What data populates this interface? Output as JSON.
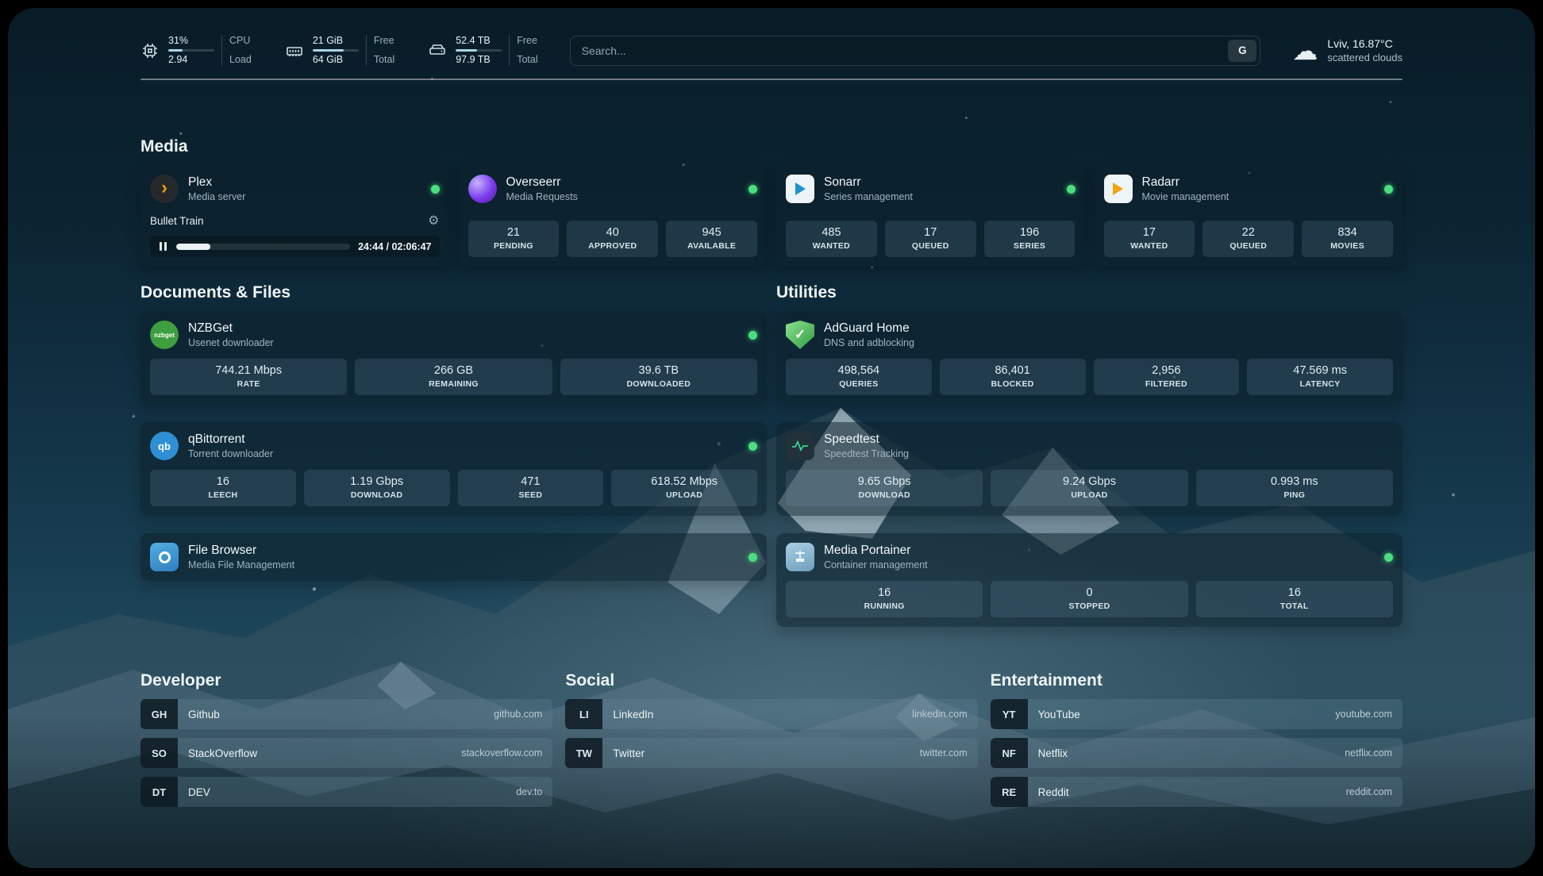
{
  "theme": {
    "status_online": "#4ade80",
    "progress_fill": "#a9d6e8",
    "plex_accent": "#e5a00d"
  },
  "topbar": {
    "cpu": {
      "value_top": "31%",
      "value_bottom": "2.94",
      "label_top": "CPU",
      "label_bottom": "Load",
      "percent": 31
    },
    "memory": {
      "value_top": "21 GiB",
      "value_bottom": "64 GiB",
      "label_top": "Free",
      "label_bottom": "Total",
      "percent": 67
    },
    "disk": {
      "value_top": "52.4 TB",
      "value_bottom": "97.9 TB",
      "label_top": "Free",
      "label_bottom": "Total",
      "percent": 46
    },
    "search": {
      "placeholder": "Search...",
      "provider": "G"
    },
    "weather": {
      "location": "Lviv, 16.87°C",
      "condition": "scattered clouds"
    }
  },
  "media": {
    "title": "Media",
    "plex": {
      "name": "Plex",
      "subtitle": "Media server",
      "now_playing": "Bullet Train",
      "time": "24:44 / 02:06:47",
      "progress": 19.5
    },
    "overseerr": {
      "name": "Overseerr",
      "subtitle": "Media Requests",
      "stats": [
        {
          "value": "21",
          "label": "PENDING"
        },
        {
          "value": "40",
          "label": "APPROVED"
        },
        {
          "value": "945",
          "label": "AVAILABLE"
        }
      ]
    },
    "sonarr": {
      "name": "Sonarr",
      "subtitle": "Series management",
      "stats": [
        {
          "value": "485",
          "label": "WANTED"
        },
        {
          "value": "17",
          "label": "QUEUED"
        },
        {
          "value": "196",
          "label": "SERIES"
        }
      ]
    },
    "radarr": {
      "name": "Radarr",
      "subtitle": "Movie management",
      "stats": [
        {
          "value": "17",
          "label": "WANTED"
        },
        {
          "value": "22",
          "label": "QUEUED"
        },
        {
          "value": "834",
          "label": "MOVIES"
        }
      ]
    }
  },
  "documents": {
    "title": "Documents & Files",
    "nzbget": {
      "name": "NZBGet",
      "subtitle": "Usenet downloader",
      "icon_text": "nzbget",
      "stats": [
        {
          "value": "744.21 Mbps",
          "label": "RATE"
        },
        {
          "value": "266 GB",
          "label": "REMAINING"
        },
        {
          "value": "39.6 TB",
          "label": "DOWNLOADED"
        }
      ]
    },
    "qbittorrent": {
      "name": "qBittorrent",
      "subtitle": "Torrent downloader",
      "icon_text": "qb",
      "stats": [
        {
          "value": "16",
          "label": "LEECH"
        },
        {
          "value": "1.19 Gbps",
          "label": "DOWNLOAD"
        },
        {
          "value": "471",
          "label": "SEED"
        },
        {
          "value": "618.52 Mbps",
          "label": "UPLOAD"
        }
      ]
    },
    "filebrowser": {
      "name": "File Browser",
      "subtitle": "Media File Management"
    }
  },
  "utilities": {
    "title": "Utilities",
    "adguard": {
      "name": "AdGuard Home",
      "subtitle": "DNS and adblocking",
      "stats": [
        {
          "value": "498,564",
          "label": "QUERIES"
        },
        {
          "value": "86,401",
          "label": "BLOCKED"
        },
        {
          "value": "2,956",
          "label": "FILTERED"
        },
        {
          "value": "47.569 ms",
          "label": "LATENCY"
        }
      ]
    },
    "speedtest": {
      "name": "Speedtest",
      "subtitle": "Speedtest Tracking",
      "stats": [
        {
          "value": "9.65 Gbps",
          "label": "DOWNLOAD"
        },
        {
          "value": "9.24 Gbps",
          "label": "UPLOAD"
        },
        {
          "value": "0.993 ms",
          "label": "PING"
        }
      ]
    },
    "portainer": {
      "name": "Media Portainer",
      "subtitle": "Container management",
      "stats": [
        {
          "value": "16",
          "label": "RUNNING"
        },
        {
          "value": "0",
          "label": "STOPPED"
        },
        {
          "value": "16",
          "label": "TOTAL"
        }
      ]
    }
  },
  "bookmarks": [
    {
      "title": "Developer",
      "items": [
        {
          "abbr": "GH",
          "name": "Github",
          "url": "github.com"
        },
        {
          "abbr": "SO",
          "name": "StackOverflow",
          "url": "stackoverflow.com"
        },
        {
          "abbr": "DT",
          "name": "DEV",
          "url": "dev.to"
        }
      ]
    },
    {
      "title": "Social",
      "items": [
        {
          "abbr": "LI",
          "name": "LinkedIn",
          "url": "linkedin.com"
        },
        {
          "abbr": "TW",
          "name": "Twitter",
          "url": "twitter.com"
        }
      ]
    },
    {
      "title": "Entertainment",
      "items": [
        {
          "abbr": "YT",
          "name": "YouTube",
          "url": "youtube.com"
        },
        {
          "abbr": "NF",
          "name": "Netflix",
          "url": "netflix.com"
        },
        {
          "abbr": "RE",
          "name": "Reddit",
          "url": "reddit.com"
        }
      ]
    }
  ]
}
